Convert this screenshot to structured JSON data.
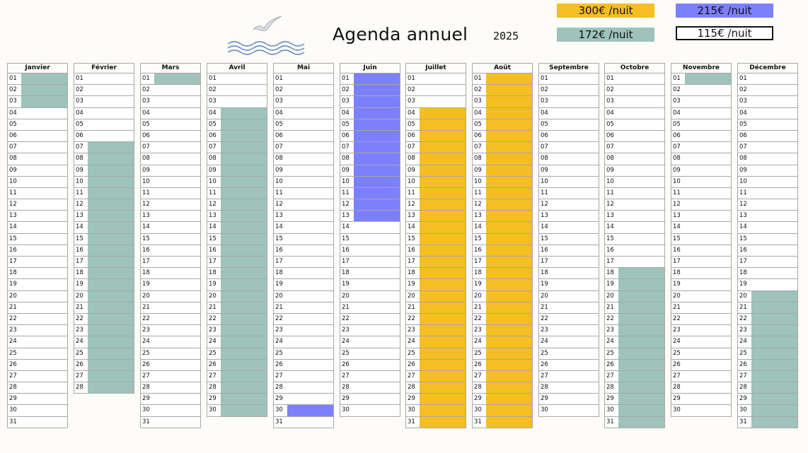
{
  "header": {
    "title": "Agenda annuel",
    "year": "2025"
  },
  "legend": [
    {
      "label": "300€ /nuit",
      "color": "#f5be22"
    },
    {
      "label": "215€ /nuit",
      "color": "#7c80fd"
    },
    {
      "label": "172€ /nuit",
      "color": "#9dc3ba"
    },
    {
      "label": "115€ /nuit",
      "color": "#ffffff"
    }
  ],
  "months": [
    {
      "name": "Janvier",
      "days": 31,
      "rates": [
        [
          "172€ /nuit",
          1,
          3
        ]
      ]
    },
    {
      "name": "Février",
      "days": 28,
      "rates": [
        [
          "172€ /nuit",
          7,
          28
        ]
      ]
    },
    {
      "name": "Mars",
      "days": 31,
      "rates": [
        [
          "172€ /nuit",
          1,
          1
        ]
      ]
    },
    {
      "name": "Avril",
      "days": 30,
      "rates": [
        [
          "172€ /nuit",
          4,
          30
        ]
      ]
    },
    {
      "name": "Mai",
      "days": 31,
      "rates": [
        [
          "215€ /nuit",
          30,
          30
        ]
      ]
    },
    {
      "name": "Juin",
      "days": 30,
      "rates": [
        [
          "215€ /nuit",
          1,
          13
        ]
      ]
    },
    {
      "name": "Juillet",
      "days": 31,
      "rates": [
        [
          "300€ /nuit",
          4,
          31
        ]
      ]
    },
    {
      "name": "Août",
      "days": 31,
      "rates": [
        [
          "300€ /nuit",
          1,
          31
        ]
      ]
    },
    {
      "name": "Septembre",
      "days": 30,
      "rates": []
    },
    {
      "name": "Octobre",
      "days": 31,
      "rates": [
        [
          "172€ /nuit",
          18,
          31
        ]
      ]
    },
    {
      "name": "Novembre",
      "days": 30,
      "rates": [
        [
          "172€ /nuit",
          1,
          1
        ]
      ]
    },
    {
      "name": "Décembre",
      "days": 31,
      "rates": [
        [
          "172€ /nuit",
          20,
          31
        ]
      ]
    }
  ]
}
